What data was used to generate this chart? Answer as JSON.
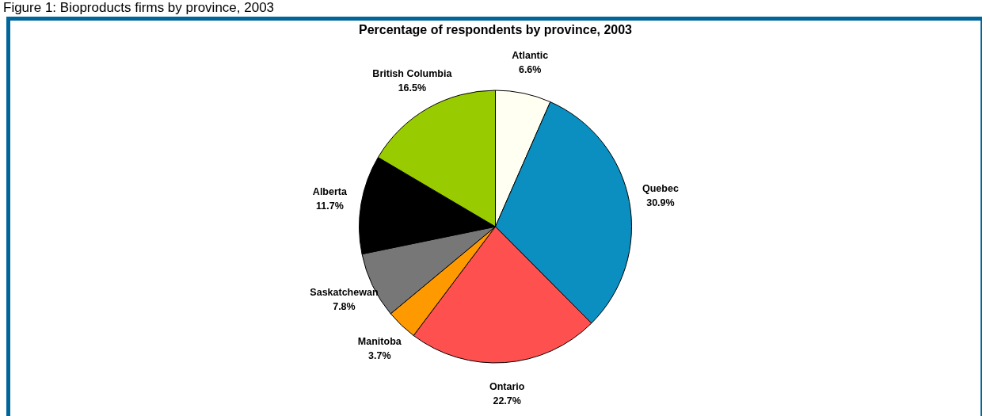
{
  "chart_data": {
    "type": "pie",
    "title": "Percentage of respondents by province, 2003",
    "annotations": [
      "Figure 1: Bioproducts firms by province, 2003"
    ],
    "categories": [
      "Atlantic",
      "Quebec",
      "Ontario",
      "Manitoba",
      "Saskatchewan",
      "Alberta",
      "British Columbia"
    ],
    "values": [
      6.6,
      30.9,
      22.7,
      3.7,
      7.8,
      11.7,
      16.5
    ],
    "value_labels": [
      "6.6%",
      "30.9%",
      "22.7%",
      "3.7%",
      "7.8%",
      "11.7%",
      "16.5%"
    ],
    "colors": [
      "#fffff2",
      "#0b8fc1",
      "#ff5050",
      "#ff9900",
      "#777777",
      "#000000",
      "#99cc00"
    ]
  }
}
